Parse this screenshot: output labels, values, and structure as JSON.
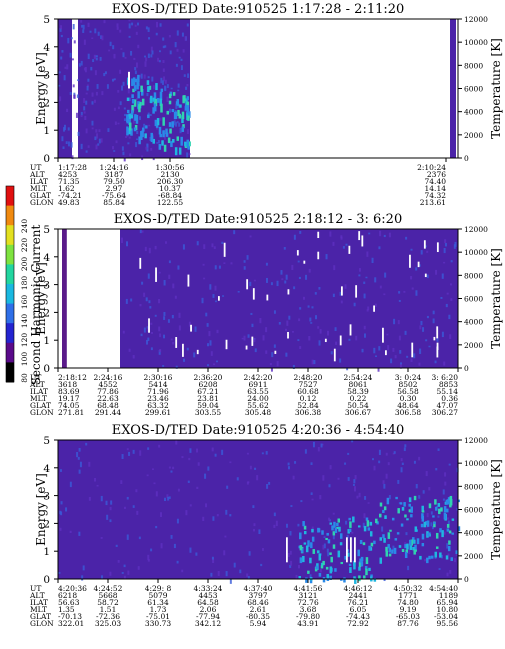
{
  "chart_data": [
    {
      "type": "heatmap",
      "title": "EXOS-D/TED   Date:910525   1:17:28 - 2:11:20",
      "ylabel": "Energy [eV]",
      "y2label": "Temperature [K]",
      "ylim": [
        0,
        5
      ],
      "y2lim": [
        0,
        12000
      ],
      "yticks": [
        "0",
        "1",
        "2",
        "3",
        "4",
        "5"
      ],
      "y2ticks": [
        "0",
        "2000",
        "4000",
        "6000",
        "8000",
        "10000",
        "12000"
      ],
      "x_range": [
        "1:17:28",
        "2:11:20"
      ],
      "ephemeris": {
        "labels": [
          "UT",
          "ALT",
          "ILAT",
          "MLT",
          "GLAT",
          "GLON"
        ],
        "columns": [
          {
            "UT": "1:17:28",
            "ALT": "4253",
            "ILAT": "71.35",
            "MLT": "1.62",
            "GLAT": "-74.21",
            "GLON": "49.83"
          },
          {
            "UT": "1:24:16",
            "ALT": "3187",
            "ILAT": "79.50",
            "MLT": "2.97",
            "GLAT": "-75.64",
            "GLON": "85.84"
          },
          {
            "UT": "1:30:56",
            "ALT": "2130",
            "ILAT": "206.30",
            "MLT": "10.37",
            "GLAT": "-68.84",
            "GLON": "122.55"
          },
          {
            "UT": "2:10:24",
            "ALT": "2376",
            "ILAT": "74.40",
            "MLT": "14.14",
            "GLAT": "74.32",
            "GLON": "213.61"
          }
        ]
      }
    },
    {
      "type": "heatmap",
      "title": "EXOS-D/TED   Date:910525   2:18:12 - 3: 6:20",
      "ylabel": "Energy [eV]",
      "y2label": "Temperature [K]",
      "ylim": [
        0,
        5
      ],
      "y2lim": [
        0,
        12000
      ],
      "yticks": [
        "0",
        "1",
        "2",
        "3",
        "4",
        "5"
      ],
      "y2ticks": [
        "0",
        "2000",
        "4000",
        "6000",
        "8000",
        "10000",
        "12000"
      ],
      "x_range": [
        "2:18:12",
        "3: 6:20"
      ],
      "ephemeris": {
        "labels": [
          "UT",
          "ALT",
          "ILAT",
          "MLT",
          "GLAT",
          "GLON"
        ],
        "columns": [
          {
            "UT": "2:18:12",
            "ALT": "3618",
            "ILAT": "83.69",
            "MLT": "19.17",
            "GLAT": "74.05",
            "GLON": "271.81"
          },
          {
            "UT": "2:24:16",
            "ALT": "4552",
            "ILAT": "77.86",
            "MLT": "22.63",
            "GLAT": "68.48",
            "GLON": "291.44"
          },
          {
            "UT": "2:30:16",
            "ALT": "5414",
            "ILAT": "71.96",
            "MLT": "23.46",
            "GLAT": "63.32",
            "GLON": "299.61"
          },
          {
            "UT": "2:36:20",
            "ALT": "6208",
            "ILAT": "67.21",
            "MLT": "23.81",
            "GLAT": "59.04",
            "GLON": "303.55"
          },
          {
            "UT": "2:42:20",
            "ALT": "6911",
            "ILAT": "63.55",
            "MLT": "24.00",
            "GLAT": "55.62",
            "GLON": "305.48"
          },
          {
            "UT": "2:48:20",
            "ALT": "7527",
            "ILAT": "60.68",
            "MLT": "0.12",
            "GLAT": "52.84",
            "GLON": "306.38"
          },
          {
            "UT": "2:54:24",
            "ALT": "8061",
            "ILAT": "58.39",
            "MLT": "0.22",
            "GLAT": "50.54",
            "GLON": "306.67"
          },
          {
            "UT": "3: 0:24",
            "ALT": "8502",
            "ILAT": "56.58",
            "MLT": "0.30",
            "GLAT": "48.64",
            "GLON": "306.58"
          },
          {
            "UT": "3: 6:20",
            "ALT": "8853",
            "ILAT": "55.14",
            "MLT": "0.36",
            "GLAT": "47.07",
            "GLON": "306.27"
          }
        ]
      }
    },
    {
      "type": "heatmap",
      "title": "EXOS-D/TED   Date:910525   4:20:36 - 4:54:40",
      "ylabel": "Energy [eV]",
      "y2label": "Temperature [K]",
      "ylim": [
        0,
        5
      ],
      "y2lim": [
        0,
        12000
      ],
      "yticks": [
        "0",
        "1",
        "2",
        "3",
        "4",
        "5"
      ],
      "y2ticks": [
        "0",
        "2000",
        "4000",
        "6000",
        "8000",
        "10000",
        "12000"
      ],
      "x_range": [
        "4:20:36",
        "4:54:40"
      ],
      "ephemeris": {
        "labels": [
          "UT",
          "ALT",
          "ILAT",
          "MLT",
          "GLAT",
          "GLON"
        ],
        "columns": [
          {
            "UT": "4:20:36",
            "ALT": "6218",
            "ILAT": "56.63",
            "MLT": "1.35",
            "GLAT": "-70.13",
            "GLON": "322.01"
          },
          {
            "UT": "4:24:52",
            "ALT": "5668",
            "ILAT": "58.72",
            "MLT": "1.51",
            "GLAT": "-72.36",
            "GLON": "325.03"
          },
          {
            "UT": "4:29: 8",
            "ALT": "5079",
            "ILAT": "61.34",
            "MLT": "1.73",
            "GLAT": "-75.01",
            "GLON": "330.73"
          },
          {
            "UT": "4:33:24",
            "ALT": "4453",
            "ILAT": "64.58",
            "MLT": "2.06",
            "GLAT": "-77.94",
            "GLON": "342.12"
          },
          {
            "UT": "4:37:40",
            "ALT": "3797",
            "ILAT": "68.46",
            "MLT": "2.61",
            "GLAT": "-80.35",
            "GLON": "5.94"
          },
          {
            "UT": "4:41:56",
            "ALT": "3121",
            "ILAT": "72.76",
            "MLT": "3.68",
            "GLAT": "-79.80",
            "GLON": "43.91"
          },
          {
            "UT": "4:46:12",
            "ALT": "2441",
            "ILAT": "76.21",
            "MLT": "6.05",
            "GLAT": "-74.43",
            "GLON": "72.92"
          },
          {
            "UT": "4:50:32",
            "ALT": "1771",
            "ILAT": "74.80",
            "MLT": "9.19",
            "GLAT": "-65.03",
            "GLON": "87.76"
          },
          {
            "UT": "4:54:40",
            "ALT": "1189",
            "ILAT": "65.94",
            "MLT": "10.80",
            "GLAT": "-53.04",
            "GLON": "95.56"
          }
        ]
      }
    }
  ],
  "colorbar": {
    "label": "Second Harmonic Current",
    "ticks": [
      "80",
      "100",
      "120",
      "140",
      "160",
      "180",
      "200",
      "220",
      "240"
    ],
    "colors": [
      "#000000",
      "#5a0a8a",
      "#2424d0",
      "#2f6fe8",
      "#19b8e0",
      "#22d6a0",
      "#7ee340",
      "#e3e020",
      "#f08a10",
      "#e01010"
    ]
  },
  "colors": {
    "background": "#4b23a8",
    "speckle": "#3a5ad8",
    "intense": "#2fd4b0"
  }
}
